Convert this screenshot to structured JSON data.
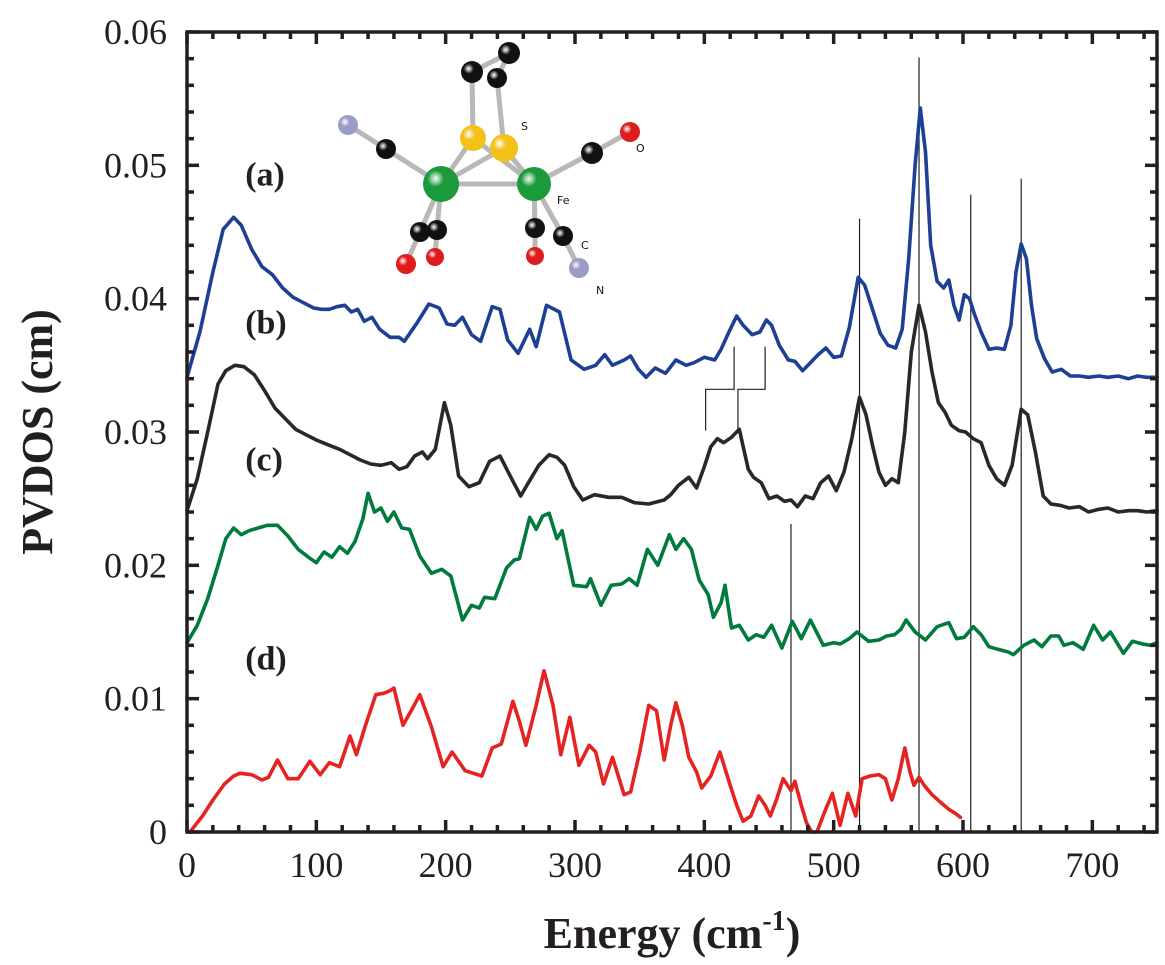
{
  "chart_data": {
    "type": "line",
    "title": "",
    "xlabel": "Energy (cm",
    "xlabel_sup": "-1",
    "xlabel_end": ")",
    "ylabel": "PVDOS (cm)",
    "xlim": [
      0,
      750
    ],
    "ylim": [
      0,
      0.06
    ],
    "x_ticks": [
      0,
      100,
      200,
      300,
      400,
      500,
      600,
      700
    ],
    "x_tick_labels": [
      "0",
      "100",
      "200",
      "300",
      "400",
      "500",
      "600",
      "700"
    ],
    "x_minor_step": 20,
    "y_ticks": [
      0,
      0.01,
      0.02,
      0.03,
      0.04,
      0.05,
      0.06
    ],
    "y_tick_labels": [
      "0",
      "0.01",
      "0.02",
      "0.03",
      "0.04",
      "0.05",
      "0.06"
    ],
    "y_minor_step": 0.002,
    "grid": false,
    "legend": "none",
    "panel_labels": [
      {
        "text": "(a)",
        "x": 45,
        "y": 0.0485
      },
      {
        "text": "(b)",
        "x": 45,
        "y": 0.0374
      },
      {
        "text": "(c)",
        "x": 45,
        "y": 0.0271
      },
      {
        "text": "(d)",
        "x": 45,
        "y": 0.0122
      }
    ],
    "series": [
      {
        "name": "(a)",
        "color": "#1d3f94",
        "x": [
          0,
          10,
          20,
          28,
          36,
          42,
          50,
          58,
          66,
          74,
          82,
          90,
          98,
          104,
          110,
          116,
          122,
          127,
          132,
          137,
          143,
          149,
          157,
          164,
          168,
          178,
          187,
          195,
          201,
          207,
          213,
          220,
          227,
          236,
          242,
          248,
          256,
          265,
          270,
          278,
          288,
          297,
          307,
          316,
          323,
          329,
          338,
          343,
          349,
          355,
          362,
          370,
          378,
          386,
          392,
          400,
          408,
          413,
          420,
          425,
          430,
          437,
          443,
          448,
          452,
          458,
          465,
          470,
          476,
          482,
          488,
          494,
          500,
          506,
          512,
          519,
          524,
          530,
          536,
          542,
          548,
          553,
          558,
          563,
          567,
          571,
          575,
          580,
          585,
          589,
          593,
          597,
          601,
          605,
          609,
          614,
          620,
          626,
          632,
          637,
          641,
          645,
          649,
          653,
          657,
          663,
          669,
          676,
          683,
          690,
          697,
          705,
          712,
          720,
          728,
          735,
          742,
          750
        ],
        "y": [
          0.0341,
          0.0375,
          0.042,
          0.0452,
          0.0461,
          0.0455,
          0.0437,
          0.0424,
          0.0418,
          0.0408,
          0.0401,
          0.0397,
          0.0393,
          0.0392,
          0.0392,
          0.0394,
          0.0395,
          0.039,
          0.0392,
          0.0383,
          0.0386,
          0.0377,
          0.0371,
          0.0371,
          0.0368,
          0.0382,
          0.0396,
          0.0393,
          0.0381,
          0.038,
          0.0386,
          0.0373,
          0.0368,
          0.0394,
          0.0392,
          0.0369,
          0.0359,
          0.0377,
          0.0364,
          0.0395,
          0.039,
          0.0354,
          0.0347,
          0.035,
          0.0358,
          0.035,
          0.0354,
          0.0357,
          0.0347,
          0.0341,
          0.0348,
          0.0344,
          0.0354,
          0.035,
          0.0352,
          0.0356,
          0.0354,
          0.0362,
          0.0377,
          0.0387,
          0.038,
          0.0373,
          0.0375,
          0.0384,
          0.038,
          0.0365,
          0.0354,
          0.0353,
          0.0346,
          0.0352,
          0.0358,
          0.0363,
          0.0356,
          0.0357,
          0.0378,
          0.0416,
          0.041,
          0.0392,
          0.0374,
          0.0365,
          0.0363,
          0.0377,
          0.043,
          0.05,
          0.0543,
          0.051,
          0.044,
          0.0413,
          0.0408,
          0.0414,
          0.0395,
          0.0384,
          0.0403,
          0.04,
          0.0388,
          0.0375,
          0.0362,
          0.0363,
          0.0362,
          0.038,
          0.042,
          0.0441,
          0.043,
          0.0395,
          0.037,
          0.0355,
          0.0345,
          0.0347,
          0.0342,
          0.0342,
          0.0341,
          0.0342,
          0.0341,
          0.0342,
          0.034,
          0.0342,
          0.0341,
          0.0341
        ]
      },
      {
        "name": "(b)",
        "color": "#2b2726",
        "x": [
          0,
          8,
          16,
          24,
          30,
          37,
          44,
          52,
          60,
          68,
          76,
          84,
          92,
          100,
          110,
          118,
          126,
          134,
          142,
          150,
          158,
          164,
          170,
          176,
          182,
          186,
          192,
          199,
          204,
          210,
          218,
          226,
          234,
          242,
          251,
          258,
          264,
          272,
          280,
          286,
          292,
          299,
          306,
          315,
          326,
          336,
          346,
          357,
          369,
          374,
          380,
          388,
          394,
          400,
          405,
          410,
          415,
          421,
          427,
          431,
          434,
          438,
          444,
          450,
          456,
          462,
          467,
          472,
          478,
          484,
          490,
          496,
          502,
          508,
          514,
          520,
          525,
          530,
          535,
          540,
          545,
          550,
          555,
          560,
          566,
          571,
          576,
          581,
          586,
          591,
          597,
          602,
          608,
          614,
          620,
          626,
          632,
          638,
          645,
          650,
          656,
          662,
          668,
          675,
          682,
          690,
          697,
          705,
          712,
          720,
          728,
          735,
          742,
          750
        ],
        "y": [
          0.0241,
          0.0265,
          0.03,
          0.0336,
          0.0346,
          0.035,
          0.0349,
          0.0343,
          0.0331,
          0.0318,
          0.031,
          0.0302,
          0.0298,
          0.0294,
          0.029,
          0.0287,
          0.0283,
          0.0279,
          0.0276,
          0.0275,
          0.0277,
          0.0272,
          0.0274,
          0.0282,
          0.0285,
          0.028,
          0.0287,
          0.0322,
          0.0305,
          0.0267,
          0.0259,
          0.0262,
          0.0278,
          0.0282,
          0.0265,
          0.0252,
          0.0262,
          0.0275,
          0.0283,
          0.0281,
          0.0275,
          0.0259,
          0.0249,
          0.0253,
          0.0251,
          0.0251,
          0.0247,
          0.0246,
          0.0249,
          0.0253,
          0.026,
          0.0266,
          0.0258,
          0.0274,
          0.0289,
          0.0295,
          0.0292,
          0.0296,
          0.0302,
          0.0285,
          0.0272,
          0.0266,
          0.0262,
          0.025,
          0.0252,
          0.0248,
          0.0249,
          0.0244,
          0.0252,
          0.025,
          0.0262,
          0.0267,
          0.0256,
          0.027,
          0.0295,
          0.0326,
          0.0313,
          0.029,
          0.027,
          0.026,
          0.0265,
          0.0262,
          0.03,
          0.036,
          0.0395,
          0.0375,
          0.0345,
          0.0322,
          0.0315,
          0.0305,
          0.0301,
          0.03,
          0.0295,
          0.0292,
          0.0275,
          0.0265,
          0.026,
          0.0275,
          0.0317,
          0.0313,
          0.0285,
          0.0252,
          0.0246,
          0.0245,
          0.0243,
          0.0244,
          0.024,
          0.0242,
          0.0243,
          0.024,
          0.0241,
          0.0241,
          0.024,
          0.0241
        ]
      },
      {
        "name": "(c)",
        "color": "#007a3d",
        "x": [
          0,
          8,
          16,
          24,
          30,
          36,
          42,
          48,
          55,
          62,
          70,
          78,
          86,
          94,
          100,
          106,
          112,
          118,
          124,
          130,
          136,
          140,
          145,
          150,
          155,
          160,
          166,
          172,
          180,
          189,
          197,
          204,
          213,
          220,
          226,
          230,
          238,
          247,
          253,
          257,
          265,
          270,
          275,
          280,
          286,
          290,
          299,
          309,
          312,
          320,
          328,
          336,
          342,
          348,
          356,
          364,
          373,
          378,
          384,
          390,
          396,
          403,
          407,
          413,
          416,
          421,
          427,
          434,
          440,
          446,
          452,
          460,
          468,
          475,
          482,
          492,
          500,
          505,
          512,
          518,
          527,
          535,
          541,
          547,
          552,
          556,
          563,
          571,
          580,
          589,
          595,
          601,
          608,
          614,
          620,
          627,
          635,
          639,
          647,
          655,
          661,
          668,
          674,
          678,
          685,
          693,
          701,
          708,
          714,
          724,
          731,
          739,
          745,
          750
        ],
        "y": [
          0.0142,
          0.0155,
          0.0175,
          0.02,
          0.022,
          0.0228,
          0.0223,
          0.0226,
          0.0228,
          0.023,
          0.023,
          0.0222,
          0.0212,
          0.0206,
          0.0202,
          0.021,
          0.0206,
          0.0214,
          0.0209,
          0.0218,
          0.0235,
          0.0254,
          0.024,
          0.0243,
          0.0233,
          0.024,
          0.0228,
          0.0227,
          0.0207,
          0.0194,
          0.0197,
          0.0192,
          0.0159,
          0.017,
          0.0168,
          0.0176,
          0.0175,
          0.0198,
          0.0204,
          0.0205,
          0.0236,
          0.0227,
          0.0237,
          0.0239,
          0.022,
          0.0226,
          0.0185,
          0.0184,
          0.019,
          0.017,
          0.0185,
          0.0186,
          0.019,
          0.0185,
          0.0212,
          0.02,
          0.0223,
          0.0212,
          0.022,
          0.0212,
          0.0189,
          0.0178,
          0.0161,
          0.0172,
          0.0185,
          0.0153,
          0.0155,
          0.0144,
          0.0148,
          0.0146,
          0.0155,
          0.0138,
          0.0158,
          0.0145,
          0.0159,
          0.014,
          0.0142,
          0.0141,
          0.0145,
          0.015,
          0.0143,
          0.0144,
          0.0147,
          0.0148,
          0.0152,
          0.0159,
          0.015,
          0.0144,
          0.0154,
          0.0157,
          0.0145,
          0.0146,
          0.0154,
          0.0148,
          0.0139,
          0.0137,
          0.0135,
          0.0133,
          0.014,
          0.0144,
          0.0139,
          0.0147,
          0.0147,
          0.014,
          0.0142,
          0.0137,
          0.0155,
          0.0144,
          0.015,
          0.0134,
          0.0143,
          0.0141,
          0.014,
          0.0142
        ]
      },
      {
        "name": "(d)",
        "color": "#e52421",
        "x": [
          3,
          12,
          20,
          29,
          36,
          41,
          50,
          58,
          63,
          70,
          78,
          86,
          95,
          103,
          110,
          118,
          126,
          131,
          138,
          146,
          152,
          157,
          160,
          167,
          174,
          180,
          189,
          198,
          205,
          215,
          228,
          236,
          243,
          252,
          257,
          262,
          270,
          276,
          283,
          289,
          296,
          303,
          311,
          316,
          322,
          329,
          338,
          343,
          350,
          357,
          363,
          369,
          374,
          378,
          383,
          388,
          394,
          398,
          405,
          412,
          420,
          425,
          430,
          436,
          442,
          447,
          451,
          456,
          461,
          467,
          470,
          475,
          479,
          483,
          487,
          493,
          499,
          505,
          511,
          517,
          522,
          528,
          535,
          540,
          545,
          550,
          555,
          559,
          562,
          566,
          570,
          576,
          583,
          589,
          594,
          598
        ],
        "y": [
          0.0001,
          0.0012,
          0.0024,
          0.0036,
          0.0042,
          0.0044,
          0.0043,
          0.0039,
          0.0041,
          0.0054,
          0.004,
          0.004,
          0.0053,
          0.0043,
          0.0052,
          0.0049,
          0.0072,
          0.0058,
          0.008,
          0.0103,
          0.0104,
          0.0106,
          0.0108,
          0.008,
          0.0092,
          0.0103,
          0.0079,
          0.0049,
          0.006,
          0.0046,
          0.0042,
          0.0063,
          0.0066,
          0.0098,
          0.0083,
          0.0065,
          0.0095,
          0.0121,
          0.0095,
          0.0058,
          0.0086,
          0.005,
          0.0065,
          0.006,
          0.0036,
          0.0056,
          0.0028,
          0.003,
          0.006,
          0.0095,
          0.0091,
          0.0054,
          0.008,
          0.0097,
          0.008,
          0.0056,
          0.0045,
          0.0033,
          0.0042,
          0.006,
          0.0035,
          0.002,
          0.0008,
          0.0012,
          0.0027,
          0.002,
          0.0012,
          0.0025,
          0.004,
          0.0031,
          0.0038,
          0.002,
          0.0007,
          0.0,
          0.0,
          0.0015,
          0.0029,
          0.0005,
          0.0029,
          0.0012,
          0.004,
          0.0042,
          0.0043,
          0.004,
          0.0024,
          0.004,
          0.0063,
          0.0045,
          0.0035,
          0.0041,
          0.0035,
          0.0028,
          0.0022,
          0.0017,
          0.0014,
          0.0011
        ]
      }
    ],
    "annotations": {
      "vertical_lines": [
        {
          "x": 467,
          "y_top": 0.0231,
          "y_bottom": 0
        },
        {
          "x": 520,
          "y_top": 0.046,
          "y_bottom": 0
        },
        {
          "x": 566,
          "y_top": 0.0581,
          "y_bottom": 0
        },
        {
          "x": 606,
          "y_top": 0.0478,
          "y_bottom": 0
        },
        {
          "x": 645,
          "y_top": 0.049,
          "y_bottom": 0
        }
      ],
      "brackets": [
        {
          "top_x": 423,
          "bottom_x": 401,
          "y_top": 0.0364,
          "y_mid": 0.0332,
          "y_bottom": 0.0301
        },
        {
          "top_x": 447,
          "bottom_x": 426,
          "y_top": 0.0364,
          "y_mid": 0.0332,
          "y_bottom": 0.0302
        }
      ]
    },
    "inset": {
      "description": "Fe2S2 cluster ball-and-stick model",
      "atom_labels": [
        "S",
        "O",
        "Fe",
        "C",
        "N"
      ],
      "colors": {
        "Fe": "#1a9a3a",
        "S": "#f2c21a",
        "C": "#111111",
        "O": "#e01b1b",
        "N": "#9a9cc8",
        "bond": "#b8b8b8"
      }
    }
  }
}
